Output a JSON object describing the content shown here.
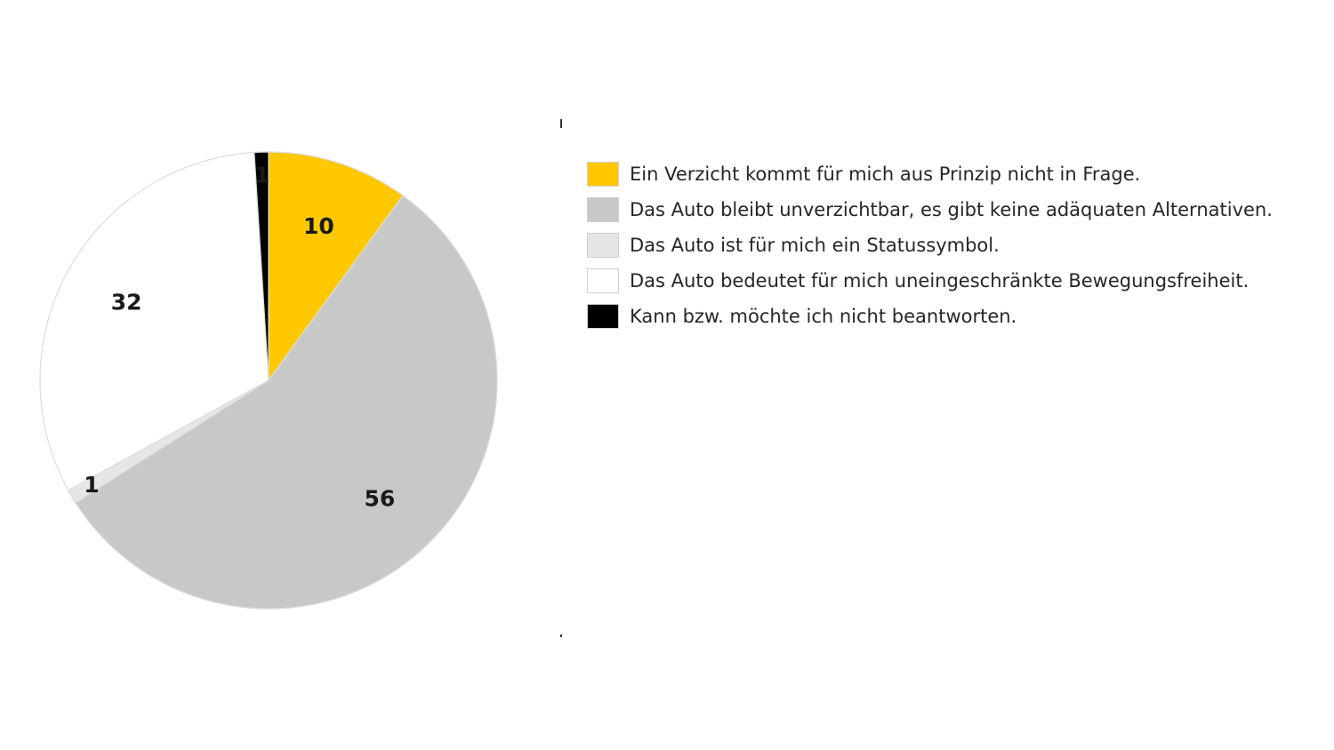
{
  "chart_data": {
    "type": "pie",
    "title": "",
    "slices": [
      {
        "label": "Ein Verzicht kommt für mich aus Prinzip nicht in Frage.",
        "value": 10,
        "color": "#ffc800"
      },
      {
        "label": "Das Auto bleibt unverzichtbar, es gibt keine adäquaten Alternativen.",
        "value": 56,
        "color": "#c8c8c8"
      },
      {
        "label": "Das Auto ist für mich ein Statussymbol.",
        "value": 1,
        "color": "#e6e6e6"
      },
      {
        "label": "Das Auto bedeutet für mich uneingeschränkte Bewegungsfreiheit.",
        "value": 32,
        "color": "#ffffff"
      },
      {
        "label": "Kann bzw. möchte ich nicht beantworten.",
        "value": 1,
        "color": "#000000"
      }
    ],
    "start_angle_deg": 0,
    "direction": "clockwise",
    "legend_position": "right",
    "data_labels": true
  }
}
